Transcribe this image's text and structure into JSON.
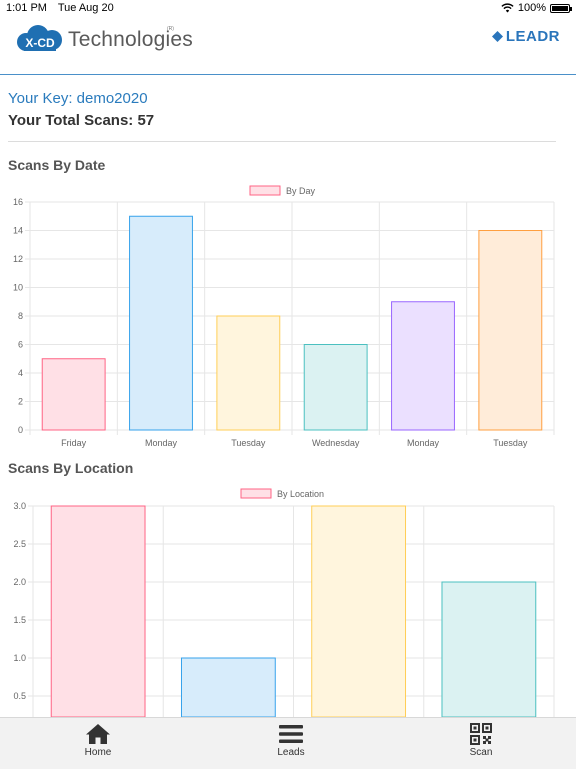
{
  "status_bar": {
    "time": "1:01 PM",
    "date": "Tue Aug 20",
    "battery": "100%",
    "battery_level": 1.0
  },
  "header": {
    "logo_text": "Technologies",
    "logo_mark": "X-CD",
    "registered": "(R)",
    "brand": "LEADR"
  },
  "info": {
    "key_line": "Your Key: demo2020",
    "scans_line": "Your Total Scans: 57"
  },
  "sections": {
    "by_date_title": "Scans By Date",
    "by_location_title": "Scans By Location"
  },
  "colors": {
    "bar_fills": [
      "#ffe0e6",
      "#d7ecfb",
      "#fff5dd",
      "#dbf2f2",
      "#ebe0ff",
      "#ffecd9"
    ],
    "bar_strokes": [
      "#ff6384",
      "#36a2eb",
      "#ffce56",
      "#4bc0c0",
      "#9966ff",
      "#ff9f40"
    ],
    "accent": "#2a7bbd"
  },
  "chart_data": [
    {
      "type": "bar",
      "categories": [
        "Friday",
        "Monday",
        "Tuesday",
        "Wednesday",
        "Monday",
        "Tuesday"
      ],
      "series": [
        {
          "name": "By Day",
          "values": [
            5,
            15,
            8,
            6,
            9,
            14
          ]
        }
      ],
      "ylim": [
        0,
        16
      ],
      "yticks": [
        0,
        2,
        4,
        6,
        8,
        10,
        12,
        14,
        16
      ],
      "legend": "top-center",
      "grid": true
    },
    {
      "type": "bar",
      "categories": [
        "",
        "",
        "",
        ""
      ],
      "series": [
        {
          "name": "By Location",
          "values": [
            3,
            1,
            3,
            2
          ]
        }
      ],
      "ylim": [
        0,
        3
      ],
      "yticks": [
        "0.5",
        "1.0",
        "1.5",
        "2.0",
        "2.5",
        "3.0"
      ],
      "legend": "top-center",
      "grid": true
    }
  ],
  "tabs": [
    {
      "label": "Home",
      "icon": "home-icon"
    },
    {
      "label": "Leads",
      "icon": "menu-icon"
    },
    {
      "label": "Scan",
      "icon": "qr-code-icon"
    }
  ]
}
